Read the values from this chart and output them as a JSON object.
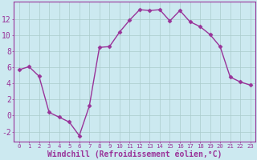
{
  "x": [
    0,
    1,
    2,
    3,
    4,
    5,
    6,
    7,
    8,
    9,
    10,
    11,
    12,
    13,
    14,
    15,
    16,
    17,
    18,
    19,
    20,
    21,
    22,
    23
  ],
  "y": [
    5.7,
    6.1,
    4.9,
    0.4,
    -0.2,
    -0.8,
    -2.5,
    1.2,
    8.5,
    8.6,
    10.4,
    11.9,
    13.2,
    13.1,
    13.2,
    11.8,
    13.1,
    11.7,
    11.1,
    10.1,
    8.6,
    4.8,
    4.2,
    3.8
  ],
  "line_color": "#993399",
  "marker": "D",
  "marker_size": 2.5,
  "bg_color": "#cce9f0",
  "grid_color": "#aacccc",
  "xlabel": "Windchill (Refroidissement éolien,°C)",
  "xlim": [
    -0.5,
    23.5
  ],
  "ylim": [
    -3.2,
    14.2
  ],
  "yticks": [
    -2,
    0,
    2,
    4,
    6,
    8,
    10,
    12
  ],
  "xticks": [
    0,
    1,
    2,
    3,
    4,
    5,
    6,
    7,
    8,
    9,
    10,
    11,
    12,
    13,
    14,
    15,
    16,
    17,
    18,
    19,
    20,
    21,
    22,
    23
  ],
  "tick_color": "#993399",
  "label_color": "#993399",
  "axis_color": "#993399",
  "ytick_fontsize": 7,
  "xtick_fontsize": 5.2,
  "xlabel_fontsize": 7,
  "line_width": 1.0
}
